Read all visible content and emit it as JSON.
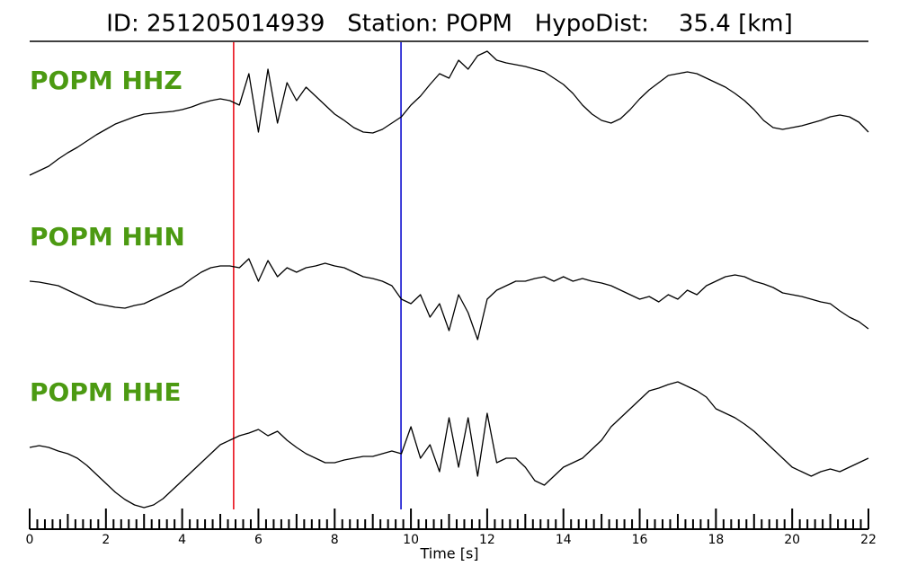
{
  "chart_data": {
    "type": "line",
    "title": "ID: 251205014939   Station: POPM   HypoDist:    35.4 [km]",
    "x_label": "Time [s]",
    "xlim": [
      0,
      22
    ],
    "xticks": [
      0,
      2,
      4,
      6,
      8,
      10,
      12,
      14,
      16,
      18,
      20,
      22
    ],
    "minor_xticks": [
      0.2,
      0.4,
      0.6,
      0.8,
      1,
      1.2,
      1.4,
      1.6,
      1.8,
      2.2,
      2.4,
      2.6,
      2.8,
      3,
      3.2,
      3.4,
      3.6,
      3.8,
      4.2,
      4.4,
      4.6,
      4.8,
      5,
      5.2,
      5.4,
      5.6,
      5.8,
      6.2,
      6.4,
      6.6,
      6.8,
      7,
      7.2,
      7.4,
      7.6,
      7.8,
      8.2,
      8.4,
      8.6,
      8.8,
      9,
      9.2,
      9.4,
      9.6,
      9.8,
      10.2,
      10.4,
      10.6,
      10.8,
      11,
      11.2,
      11.4,
      11.6,
      11.8,
      12.2,
      12.4,
      12.6,
      12.8,
      13,
      13.2,
      13.4,
      13.6,
      13.8,
      14.2,
      14.4,
      14.6,
      14.8,
      15,
      15.2,
      15.4,
      15.6,
      15.8,
      16.2,
      16.4,
      16.6,
      16.8,
      17,
      17.2,
      17.4,
      17.6,
      17.8,
      18.2,
      18.4,
      18.6,
      18.8,
      19,
      19.2,
      19.4,
      19.6,
      19.8,
      20.2,
      20.4,
      20.6,
      20.8,
      21,
      21.2,
      21.4,
      21.6,
      21.8
    ],
    "ylim": [
      -80,
      80
    ],
    "picks": [
      {
        "value": 5.35,
        "color": "#e8000b"
      },
      {
        "value": 9.74,
        "color": "#0000cc"
      }
    ],
    "x": [
      0,
      0.25,
      0.5,
      0.75,
      1,
      1.25,
      1.5,
      1.75,
      2,
      2.25,
      2.5,
      2.75,
      3,
      3.25,
      3.5,
      3.75,
      4,
      4.25,
      4.5,
      4.75,
      5,
      5.25,
      5.5,
      5.75,
      6,
      6.25,
      6.5,
      6.75,
      7,
      7.25,
      7.5,
      7.75,
      8,
      8.25,
      8.5,
      8.75,
      9,
      9.25,
      9.5,
      9.75,
      10,
      10.25,
      10.5,
      10.75,
      11,
      11.25,
      11.5,
      11.75,
      12,
      12.25,
      12.5,
      12.75,
      13,
      13.25,
      13.5,
      13.75,
      14,
      14.25,
      14.5,
      14.75,
      15,
      15.25,
      15.5,
      15.75,
      16,
      16.25,
      16.5,
      16.75,
      17,
      17.25,
      17.5,
      17.75,
      18,
      18.25,
      18.5,
      18.75,
      19,
      19.25,
      19.5,
      19.75,
      20,
      20.25,
      20.5,
      20.75,
      21,
      21.25,
      21.5,
      21.75,
      22
    ],
    "series": [
      {
        "name": "POPM HHZ",
        "color": "#000000",
        "values": [
          -73,
          -68,
          -63,
          -55,
          -48,
          -42,
          -35,
          -28,
          -22,
          -16,
          -12,
          -8,
          -5,
          -4,
          -3,
          -2,
          0,
          3,
          7,
          10,
          12,
          10,
          5,
          40,
          -25,
          45,
          -15,
          30,
          10,
          25,
          15,
          5,
          -5,
          -12,
          -20,
          -25,
          -26,
          -22,
          -15,
          -8,
          5,
          15,
          28,
          40,
          35,
          55,
          45,
          60,
          65,
          55,
          52,
          50,
          48,
          45,
          42,
          35,
          28,
          18,
          5,
          -5,
          -12,
          -15,
          -10,
          0,
          12,
          22,
          30,
          38,
          40,
          42,
          40,
          35,
          30,
          25,
          18,
          10,
          0,
          -12,
          -20,
          -22,
          -20,
          -18,
          -15,
          -12,
          -8,
          -6,
          -8,
          -14,
          -25
        ]
      },
      {
        "name": "POPM HHN",
        "color": "#000000",
        "values": [
          5,
          4,
          2,
          0,
          -5,
          -10,
          -15,
          -20,
          -22,
          -24,
          -25,
          -22,
          -20,
          -15,
          -10,
          -5,
          0,
          8,
          15,
          20,
          22,
          22,
          20,
          30,
          5,
          28,
          10,
          20,
          15,
          20,
          22,
          25,
          22,
          20,
          15,
          10,
          8,
          5,
          0,
          -15,
          -20,
          -10,
          -35,
          -20,
          -50,
          -10,
          -30,
          -60,
          -15,
          -5,
          0,
          5,
          5,
          8,
          10,
          5,
          10,
          5,
          8,
          5,
          3,
          0,
          -5,
          -10,
          -15,
          -12,
          -18,
          -10,
          -15,
          -5,
          -10,
          0,
          5,
          10,
          12,
          10,
          5,
          2,
          -2,
          -8,
          -10,
          -12,
          -15,
          -18,
          -20,
          -28,
          -35,
          -40,
          -48
        ]
      },
      {
        "name": "POPM HHE",
        "color": "#000000",
        "values": [
          -8,
          -6,
          -8,
          -12,
          -15,
          -20,
          -28,
          -38,
          -48,
          -58,
          -66,
          -72,
          -75,
          -72,
          -65,
          -55,
          -45,
          -35,
          -25,
          -15,
          -5,
          0,
          5,
          8,
          12,
          5,
          10,
          0,
          -8,
          -15,
          -20,
          -25,
          -25,
          -22,
          -20,
          -18,
          -18,
          -15,
          -12,
          -15,
          15,
          -20,
          -5,
          -35,
          25,
          -30,
          25,
          -40,
          30,
          -25,
          -20,
          -20,
          -30,
          -45,
          -50,
          -40,
          -30,
          -25,
          -20,
          -10,
          0,
          15,
          25,
          35,
          45,
          55,
          58,
          62,
          65,
          60,
          55,
          48,
          35,
          30,
          25,
          18,
          10,
          0,
          -10,
          -20,
          -30,
          -35,
          -40,
          -35,
          -32,
          -35,
          -30,
          -25,
          -20
        ]
      }
    ]
  }
}
